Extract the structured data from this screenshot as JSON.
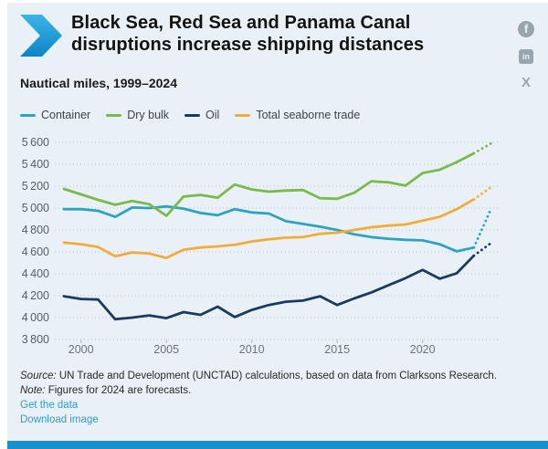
{
  "header": {
    "title_line1": "Black Sea, Red Sea and Panama Canal",
    "title_line2": "disruptions increase shipping distances",
    "subtitle": "Nautical miles, 1999–2024"
  },
  "social": [
    {
      "name": "facebook",
      "glyph": "f"
    },
    {
      "name": "linkedin",
      "glyph": "in"
    },
    {
      "name": "x",
      "glyph": "X"
    }
  ],
  "chart_data": {
    "type": "line",
    "title": "Black Sea, Red Sea and Panama Canal disruptions increase shipping distances",
    "ylabel": "Nautical miles",
    "x": [
      1999,
      2000,
      2001,
      2002,
      2003,
      2004,
      2005,
      2006,
      2007,
      2008,
      2009,
      2010,
      2011,
      2012,
      2013,
      2014,
      2015,
      2016,
      2017,
      2018,
      2019,
      2020,
      2021,
      2022,
      2023,
      2024
    ],
    "xticks": [
      2000,
      2005,
      2010,
      2015,
      2020
    ],
    "ylim": [
      3800,
      5600
    ],
    "ytick_step": 200,
    "grid": "dotted-horizontal",
    "legend_position": "top",
    "forecast_year": 2024,
    "note": "2024 values are forecasts, drawn as dotted segments",
    "series": [
      {
        "name": "Container",
        "color": "#2ea3bf",
        "values": [
          4990,
          4990,
          4975,
          4920,
          5005,
          5000,
          5015,
          4995,
          4955,
          4935,
          4990,
          4960,
          4950,
          4880,
          4855,
          4830,
          4800,
          4760,
          4735,
          4720,
          4710,
          4705,
          4670,
          4605,
          4640,
          4990
        ]
      },
      {
        "name": "Dry bulk",
        "color": "#7bb94d",
        "values": [
          5175,
          5125,
          5075,
          5030,
          5065,
          5035,
          4930,
          5105,
          5120,
          5095,
          5215,
          5170,
          5150,
          5160,
          5165,
          5090,
          5085,
          5140,
          5245,
          5235,
          5205,
          5320,
          5350,
          5420,
          5500,
          5590
        ]
      },
      {
        "name": "Oil",
        "color": "#1b3a61",
        "values": [
          4195,
          4170,
          4165,
          3985,
          4000,
          4020,
          3995,
          4050,
          4025,
          4100,
          4005,
          4070,
          4115,
          4145,
          4155,
          4195,
          4115,
          4175,
          4230,
          4295,
          4360,
          4435,
          4355,
          4405,
          4565,
          4680
        ]
      },
      {
        "name": "Total seaborne trade",
        "color": "#f0ad3b",
        "values": [
          4685,
          4670,
          4645,
          4560,
          4595,
          4585,
          4545,
          4620,
          4640,
          4650,
          4665,
          4695,
          4715,
          4730,
          4735,
          4765,
          4775,
          4800,
          4825,
          4840,
          4850,
          4885,
          4920,
          4990,
          5080,
          5190
        ]
      }
    ]
  },
  "footer": {
    "source_label": "Source:",
    "source_text": " UN Trade and Development (UNCTAD) calculations, based on data from Clarksons Research.",
    "note_label": "Note:",
    "note_text": " Figures for 2024 are forecasts.",
    "links": [
      {
        "label": "Get the data"
      },
      {
        "label": "Download image"
      }
    ]
  },
  "colors": {
    "background": "#e9f1f7",
    "bottom_bar": "#1791c9",
    "link": "#2b9fd0",
    "grid": "#b3bdc5",
    "axis_text": "#565e66",
    "chevron_top": "#3bb4e8",
    "chevron_bottom": "#0d86c6",
    "social_icon": "#9aa4ae"
  }
}
